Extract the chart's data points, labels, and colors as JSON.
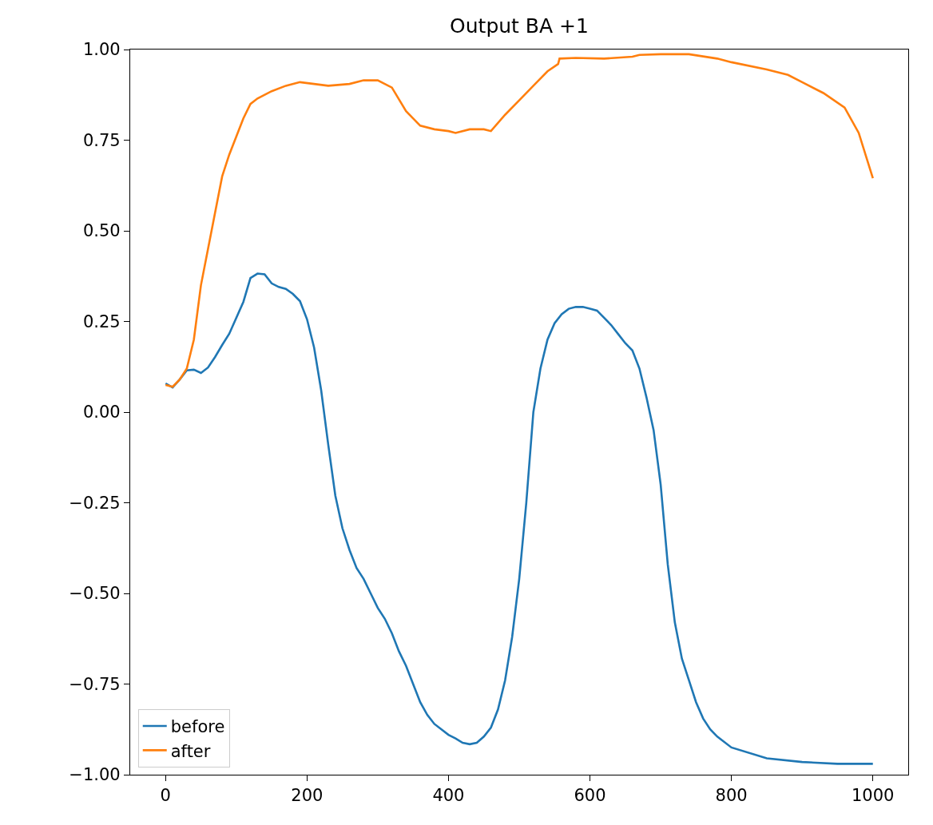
{
  "chart_data": {
    "type": "line",
    "title": "Output BA +1",
    "xlim": [
      -50,
      1050
    ],
    "xticks": [
      0,
      200,
      400,
      600,
      800,
      1000
    ],
    "ylim": [
      -1.0,
      1.0
    ],
    "yticks": [
      {
        "value": -1.0,
        "label": "−1.00"
      },
      {
        "value": -0.75,
        "label": "−0.75"
      },
      {
        "value": -0.5,
        "label": "−0.50"
      },
      {
        "value": -0.25,
        "label": "−0.25"
      },
      {
        "value": 0.0,
        "label": "0.00"
      },
      {
        "value": 0.25,
        "label": "0.25"
      },
      {
        "value": 0.5,
        "label": "0.50"
      },
      {
        "value": 0.75,
        "label": "0.75"
      },
      {
        "value": 1.0,
        "label": "1.00"
      }
    ],
    "grid": false,
    "legend": "bottom left",
    "marker": "none",
    "line_style": "solid",
    "series": [
      {
        "name": "before",
        "color": "#1f77b4",
        "x": [
          0,
          10,
          20,
          30,
          40,
          50,
          60,
          70,
          80,
          90,
          100,
          110,
          120,
          130,
          140,
          150,
          160,
          170,
          180,
          190,
          200,
          210,
          220,
          230,
          240,
          250,
          260,
          270,
          280,
          290,
          300,
          310,
          320,
          330,
          340,
          350,
          360,
          370,
          380,
          390,
          400,
          410,
          420,
          430,
          440,
          450,
          460,
          470,
          480,
          490,
          500,
          510,
          520,
          530,
          540,
          550,
          560,
          570,
          580,
          590,
          600,
          610,
          620,
          630,
          640,
          650,
          660,
          670,
          680,
          690,
          700,
          710,
          720,
          730,
          740,
          750,
          760,
          770,
          780,
          800,
          850,
          900,
          950,
          1000
        ],
        "values": [
          0.079,
          0.068,
          0.09,
          0.115,
          0.117,
          0.108,
          0.123,
          0.152,
          0.185,
          0.216,
          0.26,
          0.304,
          0.37,
          0.382,
          0.38,
          0.355,
          0.345,
          0.34,
          0.326,
          0.306,
          0.256,
          0.178,
          0.06,
          -0.09,
          -0.23,
          -0.32,
          -0.38,
          -0.43,
          -0.46,
          -0.5,
          -0.54,
          -0.57,
          -0.61,
          -0.66,
          -0.7,
          -0.75,
          -0.8,
          -0.835,
          -0.86,
          -0.875,
          -0.89,
          -0.9,
          -0.912,
          -0.916,
          -0.912,
          -0.895,
          -0.87,
          -0.82,
          -0.74,
          -0.62,
          -0.46,
          -0.25,
          0.0,
          0.12,
          0.2,
          0.245,
          0.27,
          0.285,
          0.29,
          0.29,
          0.285,
          0.28,
          0.26,
          0.24,
          0.215,
          0.19,
          0.17,
          0.12,
          0.04,
          -0.05,
          -0.2,
          -0.42,
          -0.58,
          -0.68,
          -0.74,
          -0.8,
          -0.845,
          -0.875,
          -0.895,
          -0.925,
          -0.955,
          -0.965,
          -0.97,
          -0.97
        ]
      },
      {
        "name": "after",
        "color": "#ff7f0e",
        "x": [
          0,
          10,
          20,
          30,
          40,
          50,
          60,
          70,
          80,
          90,
          100,
          110,
          120,
          130,
          150,
          170,
          190,
          210,
          230,
          260,
          280,
          300,
          320,
          340,
          360,
          380,
          400,
          410,
          430,
          450,
          460,
          480,
          500,
          520,
          540,
          555,
          557,
          580,
          620,
          660,
          670,
          700,
          740,
          780,
          800,
          850,
          880,
          900,
          930,
          960,
          980,
          1000
        ],
        "values": [
          0.075,
          0.07,
          0.09,
          0.12,
          0.2,
          0.35,
          0.45,
          0.55,
          0.65,
          0.71,
          0.76,
          0.81,
          0.85,
          0.865,
          0.885,
          0.9,
          0.91,
          0.905,
          0.9,
          0.905,
          0.915,
          0.915,
          0.895,
          0.83,
          0.79,
          0.78,
          0.775,
          0.77,
          0.78,
          0.78,
          0.775,
          0.82,
          0.86,
          0.9,
          0.94,
          0.96,
          0.975,
          0.977,
          0.975,
          0.98,
          0.985,
          0.987,
          0.987,
          0.975,
          0.965,
          0.945,
          0.93,
          0.91,
          0.88,
          0.84,
          0.77,
          0.645
        ]
      }
    ]
  }
}
